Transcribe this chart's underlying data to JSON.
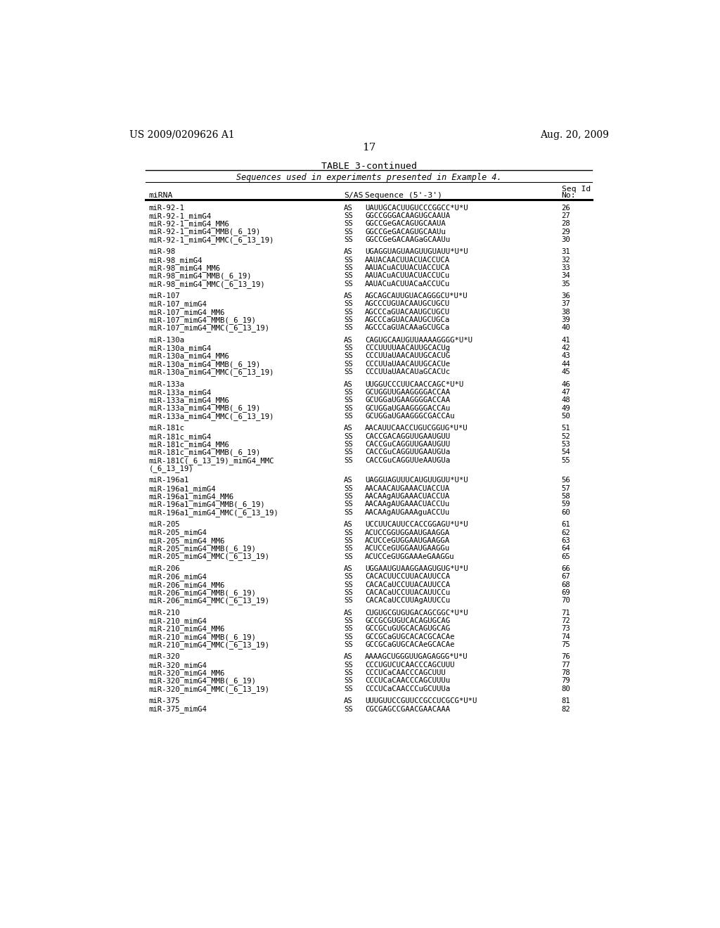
{
  "header_left": "US 2009/0209626 A1",
  "header_right": "Aug. 20, 2009",
  "page_number": "17",
  "table_title": "TABLE 3-continued",
  "table_subtitle": "Sequences used in experiments presented in Example 4.",
  "rows": [
    [
      "miR-92-1",
      "AS",
      "UAUUGCACUUGUCCCGGCC*U*U",
      "26"
    ],
    [
      "miR-92-1_mimG4",
      "SS",
      "GGCCGGGACAAGUGCAAUA",
      "27"
    ],
    [
      "miR-92-1_mimG4_MM6",
      "SS",
      "GGCCGeGACAGUGCAAUA",
      "28"
    ],
    [
      "miR-92-1_mimG4_MMB(_6_19)",
      "SS",
      "GGCCGeGACAGUGCAAUu",
      "29"
    ],
    [
      "miR-92-1_mimG4_MMC(_6_13_19)",
      "SS",
      "GGCCGeGACAAGaGCAAUu",
      "30"
    ],
    [
      "",
      "",
      "",
      ""
    ],
    [
      "miR-98",
      "AS",
      "UGAGGUAGUAAGUUGUAUU*U*U",
      "31"
    ],
    [
      "miR-98_mimG4",
      "SS",
      "AAUACAACUUACUACCUCA",
      "32"
    ],
    [
      "miR-98_mimG4_MM6",
      "SS",
      "AAUACuACUUACUACCUCA",
      "33"
    ],
    [
      "miR-98_mimG4_MMB(_6_19)",
      "SS",
      "AAUACuACUUACUACCUCu",
      "34"
    ],
    [
      "miR-98_mimG4_MMC(_6_13_19)",
      "SS",
      "AAUACuACUUACaACCUCu",
      "35"
    ],
    [
      "",
      "",
      "",
      ""
    ],
    [
      "miR-107",
      "AS",
      "AGCAGCAUUGUACAGGGCU*U*U",
      "36"
    ],
    [
      "miR-107_mimG4",
      "SS",
      "AGCCCUGUACAAUGCUGCU",
      "37"
    ],
    [
      "miR-107_mimG4_MM6",
      "SS",
      "AGCCCaGUACAAUGCUGCU",
      "38"
    ],
    [
      "miR-107_mimG4_MMB(_6_19)",
      "SS",
      "AGCCCaGUACAAUGCUGCa",
      "39"
    ],
    [
      "miR-107_mimG4_MMC(_6_13_19)",
      "SS",
      "AGCCCaGUACAAaGCUGCa",
      "40"
    ],
    [
      "",
      "",
      "",
      ""
    ],
    [
      "miR-130a",
      "AS",
      "CAGUGCAAUGUUAAAAGGGG*U*U",
      "41"
    ],
    [
      "miR-130a_mimG4",
      "SS",
      "CCCUUUUAACAUUGCACUg",
      "42"
    ],
    [
      "miR-130a_mimG4_MM6",
      "SS",
      "CCCUUaUAACAUUGCACUG",
      "43"
    ],
    [
      "miR-130a_mimG4_MMB(_6_19)",
      "SS",
      "CCCUUaUAACAUUGCACUe",
      "44"
    ],
    [
      "miR-130a_mimG4_MMC(_6_13_19)",
      "SS",
      "CCCUUaUAACAUaGCACUc",
      "45"
    ],
    [
      "",
      "",
      "",
      ""
    ],
    [
      "miR-133a",
      "AS",
      "UUGGUCCCUUCAACCAGC*U*U",
      "46"
    ],
    [
      "miR-133a_mimG4",
      "SS",
      "GCUGGUUGAAGGGGACCAA",
      "47"
    ],
    [
      "miR-133a_mimG4_MM6",
      "SS",
      "GCUGGaUGAAGGGGACCAA",
      "48"
    ],
    [
      "miR-133a_mimG4_MMB(_6_19)",
      "SS",
      "GCUGGaUGAAGGGGACCAu",
      "49"
    ],
    [
      "miR-133a_mimG4_MMC(_6_13_19)",
      "SS",
      "GCUGGaUGAAGGGCGACCAu",
      "50"
    ],
    [
      "",
      "",
      "",
      ""
    ],
    [
      "miR-181c",
      "AS",
      "AACAUUCAACCUGUCGGUG*U*U",
      "51"
    ],
    [
      "miR-181c_mimG4",
      "SS",
      "CACCGACAGGUUGAAUGUU",
      "52"
    ],
    [
      "miR-181c_mimG4_MM6",
      "SS",
      "CACCGuCAGGUUGAAUGUU",
      "53"
    ],
    [
      "miR-181c_mimG4_MMB(_6_19)",
      "SS",
      "CACCGuCAGGUUGAAUGUa",
      "54"
    ],
    [
      "miR-181C(_6_13_19)_mimG4_MMC",
      "SS",
      "CACCGuCAGGUUeAAUGUa",
      "55"
    ],
    [
      "(_6_13_19)",
      "",
      "",
      ""
    ],
    [
      "",
      "",
      "",
      ""
    ],
    [
      "miR-196a1",
      "AS",
      "UAGGUAGUUUCAUGUUGUU*U*U",
      "56"
    ],
    [
      "miR-196a1_mimG4",
      "SS",
      "AACAACAUGAAACUACCUA",
      "57"
    ],
    [
      "miR-196a1_mimG4_MM6",
      "SS",
      "AACAAgAUGAAACUACCUA",
      "58"
    ],
    [
      "miR-196a1_mimG4_MMB(_6_19)",
      "SS",
      "AACAAgAUGAAACUACCUu",
      "59"
    ],
    [
      "miR-196a1_mimG4_MMC(_6_13_19)",
      "SS",
      "AACAAgAUGAAAguACCUu",
      "60"
    ],
    [
      "",
      "",
      "",
      ""
    ],
    [
      "miR-205",
      "AS",
      "UCCUUCAUUCCACCGGAGU*U*U",
      "61"
    ],
    [
      "miR-205_mimG4",
      "SS",
      "ACUCCGGUGGAAUGAAGGA",
      "62"
    ],
    [
      "miR-205_mimG4_MM6",
      "SS",
      "ACUCCeGUGGAAUGAAGGA",
      "63"
    ],
    [
      "miR-205_mimG4_MMB(_6_19)",
      "SS",
      "ACUCCeGUGGAAUGAAGGu",
      "64"
    ],
    [
      "miR-205_mimG4_MMC(_6_13_19)",
      "SS",
      "ACUCCeGUGGAAAeGAAGGu",
      "65"
    ],
    [
      "",
      "",
      "",
      ""
    ],
    [
      "miR-206",
      "AS",
      "UGGAAUGUAAGGAAGUGUG*U*U",
      "66"
    ],
    [
      "miR-206_mimG4",
      "SS",
      "CACACUUCCUUACAUUCCA",
      "67"
    ],
    [
      "miR-206_mimG4_MM6",
      "SS",
      "CACACaUCCUUACAUUCCA",
      "68"
    ],
    [
      "miR-206_mimG4_MMB(_6_19)",
      "SS",
      "CACACaUCCUUACAUUCCu",
      "69"
    ],
    [
      "miR-206_mimG4_MMC(_6_13_19)",
      "SS",
      "CACACaUCCUUAgAUUCCu",
      "70"
    ],
    [
      "",
      "",
      "",
      ""
    ],
    [
      "miR-210",
      "AS",
      "CUGUGCGUGUGACAGCGGC*U*U",
      "71"
    ],
    [
      "miR-210_mimG4",
      "SS",
      "GCCGCGUGUCACAGUGCAG",
      "72"
    ],
    [
      "miR-210_mimG4_MM6",
      "SS",
      "GCCGCuGUGCACAGUGCAG",
      "73"
    ],
    [
      "miR-210_mimG4_MMB(_6_19)",
      "SS",
      "GCCGCaGUGCACACGCACAe",
      "74"
    ],
    [
      "miR-210_mimG4_MMC(_6_13_19)",
      "SS",
      "GCCGCaGUGCACAeGCACAe",
      "75"
    ],
    [
      "",
      "",
      "",
      ""
    ],
    [
      "miR-320",
      "AS",
      "AAAAGCUGGGUUGAGAGGG*U*U",
      "76"
    ],
    [
      "miR-320_mimG4",
      "SS",
      "CCCUGUCUCAACCCAGCUUU",
      "77"
    ],
    [
      "miR-320_mimG4_MM6",
      "SS",
      "CCCUCaCAACCCAGCUUU",
      "78"
    ],
    [
      "miR-320_mimG4_MMB(_6_19)",
      "SS",
      "CCCUCaCAACCCAGCUUUu",
      "79"
    ],
    [
      "miR-320_mimG4_MMC(_6_13_19)",
      "SS",
      "CCCUCaCAACCCuGCUUUa",
      "80"
    ],
    [
      "",
      "",
      "",
      ""
    ],
    [
      "miR-375",
      "AS",
      "UUUGUUCCGUUCCGCCUCGCG*U*U",
      "81"
    ],
    [
      "miR-375_mimG4",
      "SS",
      "CGCGAGCCGAACGAACAAA",
      "82"
    ]
  ],
  "background_color": "#ffffff",
  "text_color": "#000000"
}
